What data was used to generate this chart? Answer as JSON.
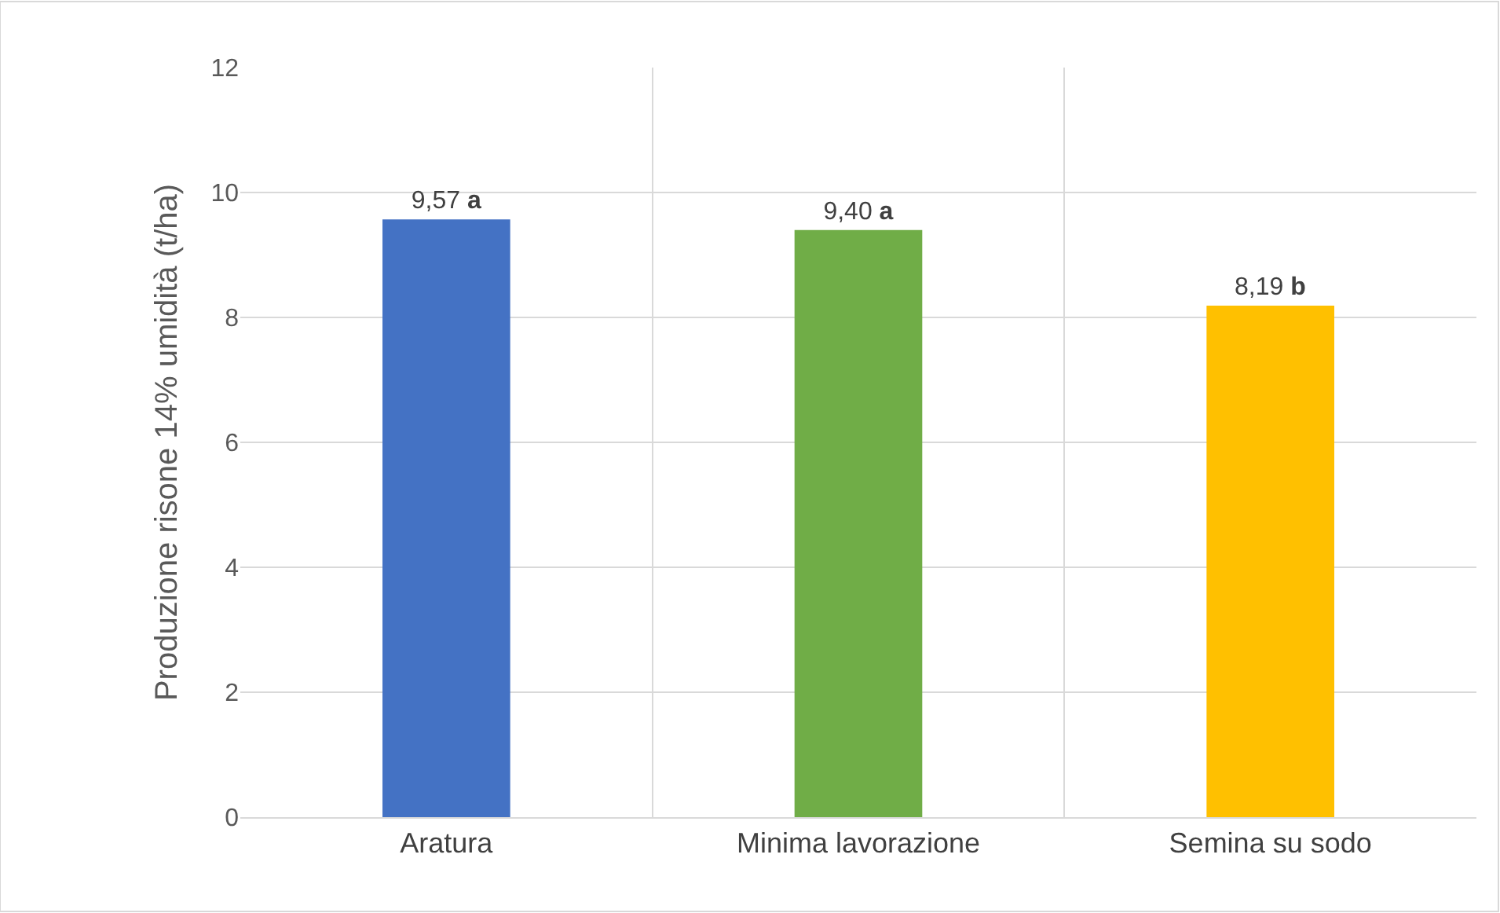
{
  "chart_data": {
    "type": "bar",
    "ylabel": "Produzione risone 14% umidità (t/ha)",
    "categories": [
      "Aratura",
      "Minima lavorazione",
      "Semina su sodo"
    ],
    "values": [
      9.57,
      9.4,
      8.19
    ],
    "colors": [
      "#4472c4",
      "#70ad47",
      "#ffc000"
    ],
    "value_labels": [
      "9,57 a",
      "9,40 a",
      "8,19 b"
    ],
    "ylim": [
      0,
      12
    ],
    "yticks": [
      0,
      2,
      4,
      6,
      8,
      10,
      12
    ],
    "grid": true
  }
}
